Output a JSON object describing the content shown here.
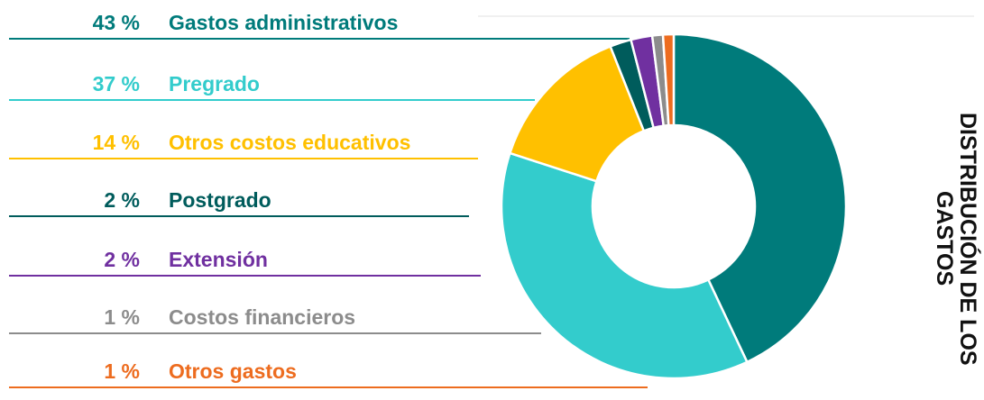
{
  "chart_data": {
    "type": "pie",
    "donut": true,
    "title": "DISTRIBUCIÓN DE LOS GASTOS",
    "categories": [
      "Gastos administrativos",
      "Pregrado",
      "Otros costos educativos",
      "Postgrado",
      "Extensión",
      "Costos financieros",
      "Otros gastos"
    ],
    "values": [
      43,
      37,
      14,
      2,
      2,
      1,
      1
    ],
    "value_labels": [
      "43 %",
      "37 %",
      "14 %",
      "2 %",
      "2 %",
      "1 %",
      "1 %"
    ],
    "colors": [
      "#007b7b",
      "#33cccc",
      "#ffc000",
      "#005c5c",
      "#7030a0",
      "#8c8c8c",
      "#ed6c1f"
    ]
  }
}
